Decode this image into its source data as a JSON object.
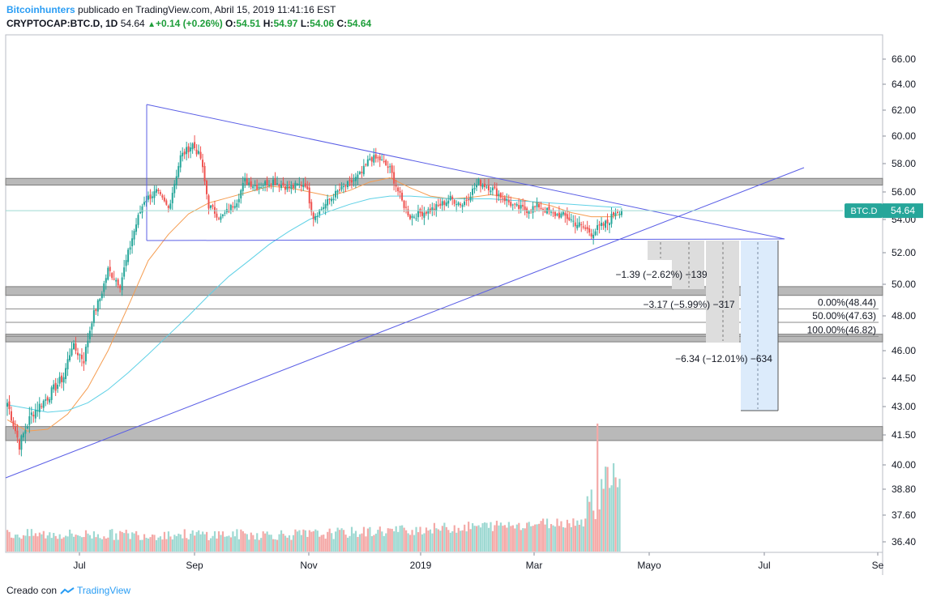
{
  "header": {
    "author": "Bitcoinhunters",
    "published_text": "publicado en TradingView.com, Abril 15, 2019 11:41:16 EST",
    "symbol": "CRYPTOCAP:BTC.D, 1D",
    "last": "54.64",
    "change": "+0.14 (+0.26%)",
    "o_label": "O:",
    "o_value": "54.51",
    "h_label": "H:",
    "h_value": "54.97",
    "l_label": "L:",
    "l_value": "54.06",
    "c_label": "C:",
    "c_value": "54.64"
  },
  "footer": {
    "created_with": "Creado con",
    "brand": "TradingView"
  },
  "colors": {
    "up": "#26a69a",
    "down": "#ef5350",
    "trendline": "#5b5fe6",
    "ma_fast": "#f59d51",
    "ma_slow": "#5fd1e6",
    "zone": "#9e9e9e",
    "badge": "#26a69a"
  },
  "chart_data": {
    "type": "candlestick",
    "y_axis": {
      "ticks": [
        "66.00",
        "64.00",
        "62.00",
        "60.00",
        "58.00",
        "56.00",
        "54.00",
        "52.00",
        "50.00",
        "48.00",
        "46.00",
        "44.50",
        "43.00",
        "41.50",
        "40.00",
        "38.80",
        "37.60",
        "36.40"
      ],
      "tick_values": [
        66.0,
        64.0,
        62.0,
        60.0,
        58.0,
        56.0,
        54.0,
        52.0,
        50.0,
        48.0,
        46.0,
        44.5,
        43.0,
        41.5,
        40.0,
        38.8,
        37.6,
        36.4
      ]
    },
    "x_axis": {
      "ticks": [
        "Jul",
        "Sep",
        "Nov",
        "2019",
        "Mar",
        "Mayo",
        "Jul",
        "Se"
      ]
    },
    "price_badge": {
      "label": "BTC.D",
      "value": "54.64"
    },
    "close_anchors": [
      [
        0,
        43.2
      ],
      [
        6,
        41.0
      ],
      [
        12,
        42.6
      ],
      [
        20,
        43.5
      ],
      [
        28,
        44.6
      ],
      [
        32,
        46.3
      ],
      [
        38,
        45.5
      ],
      [
        42,
        47.8
      ],
      [
        46,
        49.1
      ],
      [
        50,
        50.9
      ],
      [
        56,
        50.0
      ],
      [
        62,
        52.9
      ],
      [
        68,
        55.4
      ],
      [
        74,
        56.0
      ],
      [
        80,
        54.8
      ],
      [
        86,
        58.5
      ],
      [
        92,
        59.4
      ],
      [
        96,
        58.4
      ],
      [
        100,
        55.0
      ],
      [
        106,
        54.1
      ],
      [
        110,
        54.7
      ],
      [
        114,
        55.4
      ],
      [
        118,
        56.8
      ],
      [
        124,
        56.4
      ],
      [
        132,
        56.8
      ],
      [
        140,
        56.3
      ],
      [
        148,
        56.6
      ],
      [
        152,
        54.2
      ],
      [
        158,
        55.1
      ],
      [
        164,
        56.0
      ],
      [
        170,
        56.6
      ],
      [
        176,
        57.3
      ],
      [
        180,
        58.4
      ],
      [
        185,
        58.3
      ],
      [
        190,
        57.6
      ],
      [
        196,
        55.3
      ],
      [
        200,
        54.2
      ],
      [
        206,
        54.5
      ],
      [
        212,
        54.8
      ],
      [
        220,
        55.5
      ],
      [
        226,
        55.1
      ],
      [
        234,
        56.7
      ],
      [
        240,
        56.3
      ],
      [
        246,
        55.6
      ],
      [
        252,
        54.9
      ],
      [
        258,
        54.7
      ],
      [
        264,
        55.0
      ],
      [
        270,
        54.4
      ],
      [
        276,
        54.3
      ],
      [
        282,
        53.8
      ],
      [
        286,
        53.5
      ],
      [
        290,
        53.2
      ],
      [
        294,
        53.5
      ],
      [
        298,
        53.8
      ],
      [
        302,
        54.6
      ],
      [
        305,
        54.64
      ]
    ],
    "moving_averages": [
      {
        "color": "ma_fast",
        "points": [
          [
            0,
            42.3
          ],
          [
            10,
            41.7
          ],
          [
            20,
            41.8
          ],
          [
            30,
            42.6
          ],
          [
            40,
            44.0
          ],
          [
            50,
            46.0
          ],
          [
            60,
            48.6
          ],
          [
            70,
            51.5
          ],
          [
            80,
            53.1
          ],
          [
            90,
            54.4
          ],
          [
            100,
            55.2
          ],
          [
            110,
            55.6
          ],
          [
            120,
            56.0
          ],
          [
            130,
            56.4
          ],
          [
            140,
            56.3
          ],
          [
            150,
            56.0
          ],
          [
            160,
            55.7
          ],
          [
            170,
            56.1
          ],
          [
            180,
            56.7
          ],
          [
            190,
            57.0
          ],
          [
            200,
            56.3
          ],
          [
            210,
            55.7
          ],
          [
            220,
            55.5
          ],
          [
            230,
            55.6
          ],
          [
            240,
            55.8
          ],
          [
            250,
            55.6
          ],
          [
            260,
            55.3
          ],
          [
            270,
            55.0
          ],
          [
            280,
            54.5
          ],
          [
            290,
            54.2
          ],
          [
            300,
            54.2
          ],
          [
            305,
            54.4
          ]
        ]
      },
      {
        "color": "ma_slow",
        "points": [
          [
            0,
            43.1
          ],
          [
            10,
            42.9
          ],
          [
            20,
            42.7
          ],
          [
            30,
            42.8
          ],
          [
            40,
            43.2
          ],
          [
            50,
            43.9
          ],
          [
            60,
            44.8
          ],
          [
            70,
            45.8
          ],
          [
            80,
            46.9
          ],
          [
            90,
            48.0
          ],
          [
            100,
            49.3
          ],
          [
            110,
            50.5
          ],
          [
            120,
            51.5
          ],
          [
            130,
            52.5
          ],
          [
            140,
            53.3
          ],
          [
            150,
            54.0
          ],
          [
            160,
            54.6
          ],
          [
            170,
            55.1
          ],
          [
            180,
            55.5
          ],
          [
            190,
            55.7
          ],
          [
            200,
            55.7
          ],
          [
            210,
            55.6
          ],
          [
            220,
            55.5
          ],
          [
            230,
            55.5
          ],
          [
            240,
            55.5
          ],
          [
            250,
            55.4
          ],
          [
            260,
            55.3
          ],
          [
            270,
            55.2
          ],
          [
            280,
            55.1
          ],
          [
            290,
            55.0
          ],
          [
            300,
            54.9
          ],
          [
            305,
            54.9
          ]
        ]
      }
    ],
    "volume_span_bars": 305,
    "measurements": [
      {
        "label": "−1.39 (−2.62%) −139"
      },
      {
        "label": "−3.17 (−5.99%) −317"
      },
      {
        "label": "−6.34 (−12.01%) −634"
      }
    ],
    "fib_levels": [
      {
        "label": "0.00%(48.44)",
        "value": 48.44
      },
      {
        "label": "50.00%(47.63)",
        "value": 47.63
      },
      {
        "label": "100.00%(46.82)",
        "value": 46.82
      }
    ],
    "horizontal_zones": [
      {
        "from": 56.6,
        "to": 56.9
      },
      {
        "from": 49.4,
        "to": 49.8
      },
      {
        "from": 46.6,
        "to": 46.9
      },
      {
        "from": 41.3,
        "to": 41.9
      }
    ]
  }
}
